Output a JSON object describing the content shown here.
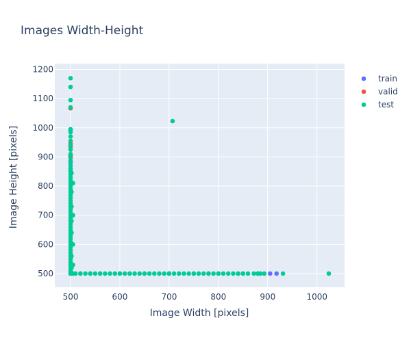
{
  "chart_data": {
    "type": "scatter",
    "title": "Images Width-Height",
    "xlabel": "Image Width [pixels]",
    "ylabel": "Image Height [pixels]",
    "xlim": [
      468,
      1056
    ],
    "ylim": [
      453,
      1220
    ],
    "x_ticks": [
      500,
      600,
      700,
      800,
      900,
      1000
    ],
    "y_ticks": [
      500,
      600,
      700,
      800,
      900,
      1000,
      1100,
      1200
    ],
    "grid": true,
    "legend_position": "top-right",
    "background_color": "#e5ecf6",
    "series": [
      {
        "name": "train",
        "color": "#636efa",
        "points": [
          [
            500,
            993
          ],
          [
            500,
            905
          ],
          [
            500,
            880
          ],
          [
            500,
            860
          ],
          [
            500,
            500
          ],
          [
            520,
            500
          ],
          [
            560,
            500
          ],
          [
            600,
            500
          ],
          [
            650,
            500
          ],
          [
            700,
            500
          ],
          [
            750,
            500
          ],
          [
            800,
            500
          ],
          [
            850,
            500
          ],
          [
            880,
            500
          ],
          [
            905,
            500
          ],
          [
            918,
            500
          ]
        ]
      },
      {
        "name": "valid",
        "color": "#ef553b",
        "points": [
          [
            500,
            1067
          ],
          [
            500,
            945
          ],
          [
            500,
            935
          ],
          [
            500,
            900
          ],
          [
            500,
            850
          ],
          [
            500,
            500
          ],
          [
            540,
            500
          ],
          [
            620,
            500
          ],
          [
            700,
            500
          ],
          [
            780,
            500
          ],
          [
            840,
            500
          ]
        ]
      },
      {
        "name": "test",
        "color": "#00cc96",
        "points": [
          [
            500,
            1170
          ],
          [
            500,
            1140
          ],
          [
            500,
            1095
          ],
          [
            500,
            1070
          ],
          [
            500,
            995
          ],
          [
            500,
            985
          ],
          [
            500,
            970
          ],
          [
            500,
            955
          ],
          [
            500,
            940
          ],
          [
            500,
            925
          ],
          [
            500,
            910
          ],
          [
            500,
            895
          ],
          [
            500,
            885
          ],
          [
            500,
            870
          ],
          [
            500,
            860
          ],
          [
            500,
            850
          ],
          [
            500,
            840
          ],
          [
            500,
            830
          ],
          [
            500,
            820
          ],
          [
            500,
            810
          ],
          [
            500,
            800
          ],
          [
            500,
            790
          ],
          [
            500,
            780
          ],
          [
            500,
            770
          ],
          [
            500,
            760
          ],
          [
            500,
            750
          ],
          [
            500,
            740
          ],
          [
            500,
            730
          ],
          [
            500,
            720
          ],
          [
            500,
            710
          ],
          [
            500,
            700
          ],
          [
            500,
            690
          ],
          [
            500,
            680
          ],
          [
            500,
            670
          ],
          [
            500,
            660
          ],
          [
            500,
            650
          ],
          [
            500,
            640
          ],
          [
            500,
            630
          ],
          [
            500,
            620
          ],
          [
            500,
            610
          ],
          [
            500,
            600
          ],
          [
            500,
            590
          ],
          [
            500,
            580
          ],
          [
            500,
            570
          ],
          [
            500,
            560
          ],
          [
            500,
            550
          ],
          [
            500,
            540
          ],
          [
            500,
            530
          ],
          [
            500,
            520
          ],
          [
            500,
            510
          ],
          [
            500,
            500
          ],
          [
            502,
            845
          ],
          [
            502,
            780
          ],
          [
            502,
            730
          ],
          [
            502,
            680
          ],
          [
            502,
            640
          ],
          [
            502,
            560
          ],
          [
            502,
            520
          ],
          [
            505,
            810
          ],
          [
            505,
            700
          ],
          [
            505,
            600
          ],
          [
            505,
            530
          ],
          [
            707,
            1023
          ],
          [
            505,
            500
          ],
          [
            510,
            500
          ],
          [
            520,
            500
          ],
          [
            530,
            500
          ],
          [
            540,
            500
          ],
          [
            550,
            500
          ],
          [
            560,
            500
          ],
          [
            570,
            500
          ],
          [
            580,
            500
          ],
          [
            590,
            500
          ],
          [
            600,
            500
          ],
          [
            610,
            500
          ],
          [
            620,
            500
          ],
          [
            630,
            500
          ],
          [
            640,
            500
          ],
          [
            650,
            500
          ],
          [
            660,
            500
          ],
          [
            670,
            500
          ],
          [
            680,
            500
          ],
          [
            690,
            500
          ],
          [
            700,
            500
          ],
          [
            710,
            500
          ],
          [
            720,
            500
          ],
          [
            730,
            500
          ],
          [
            740,
            500
          ],
          [
            750,
            500
          ],
          [
            760,
            500
          ],
          [
            770,
            500
          ],
          [
            780,
            500
          ],
          [
            790,
            500
          ],
          [
            800,
            500
          ],
          [
            810,
            500
          ],
          [
            820,
            500
          ],
          [
            830,
            500
          ],
          [
            840,
            500
          ],
          [
            850,
            500
          ],
          [
            860,
            500
          ],
          [
            872,
            500
          ],
          [
            880,
            500
          ],
          [
            885,
            500
          ],
          [
            893,
            500
          ],
          [
            931,
            500
          ],
          [
            1024,
            500
          ]
        ]
      }
    ]
  }
}
